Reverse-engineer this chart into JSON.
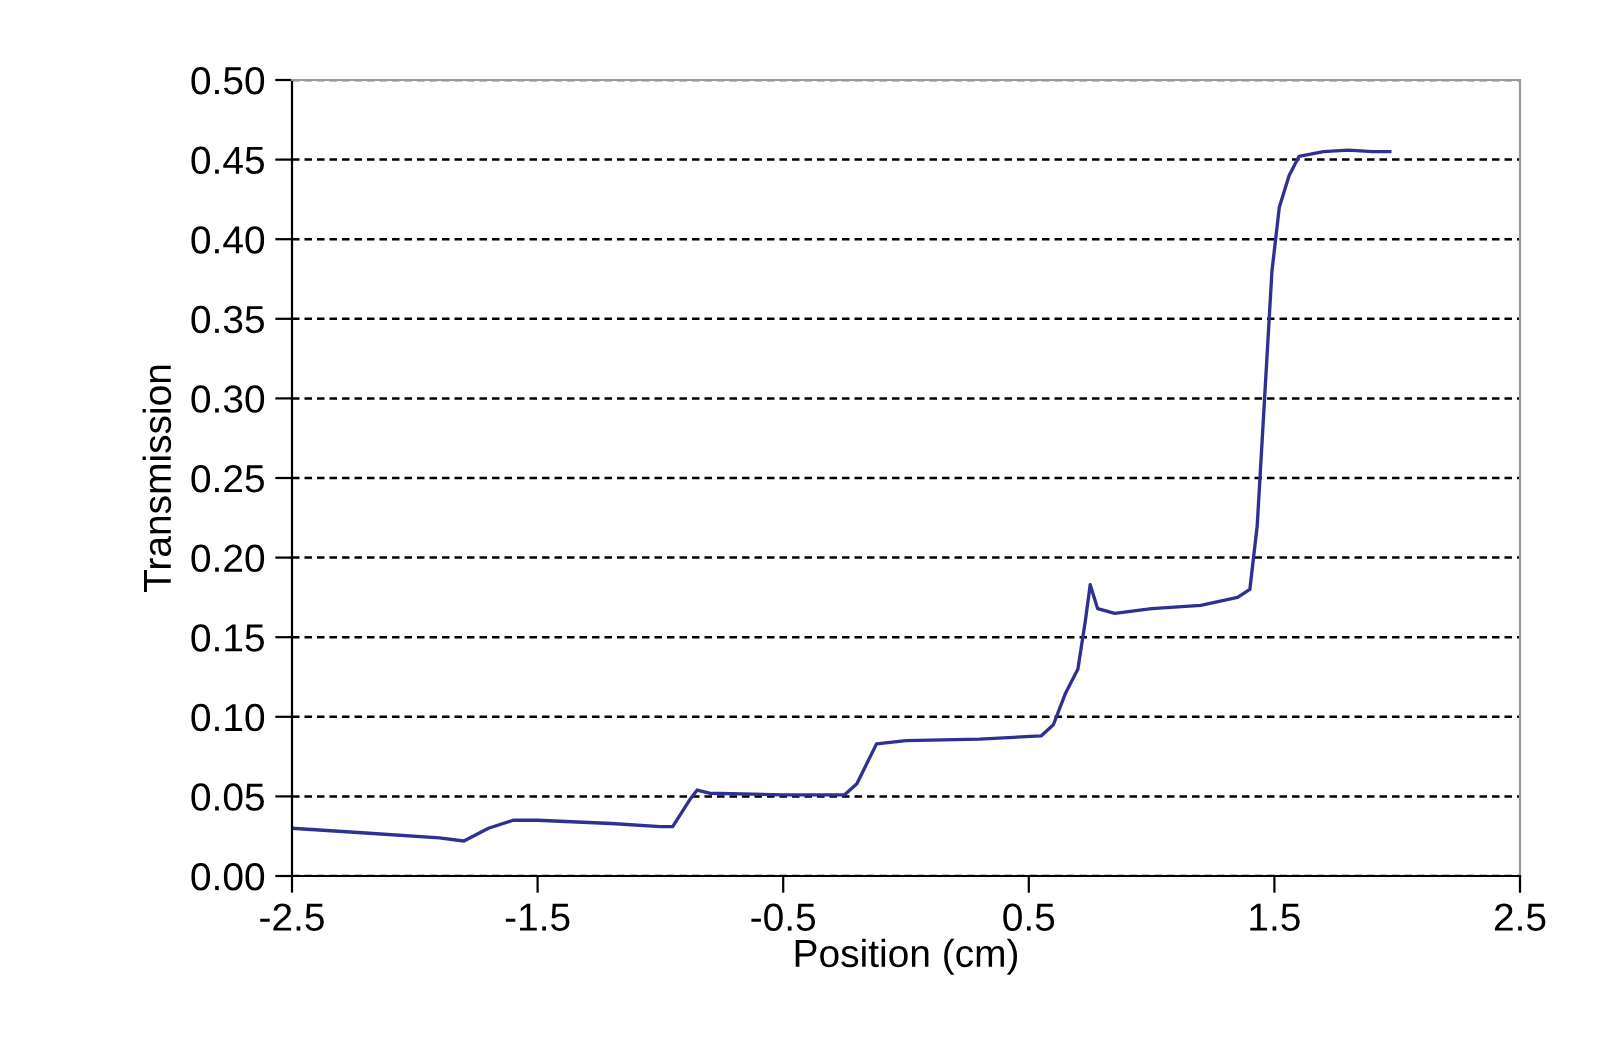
{
  "chart_data": {
    "type": "line",
    "xlabel": "Position (cm)",
    "ylabel": "Transmission",
    "x": [
      -2.5,
      -2.2,
      -1.9,
      -1.8,
      -1.7,
      -1.6,
      -1.5,
      -1.2,
      -1.0,
      -0.95,
      -0.88,
      -0.85,
      -0.8,
      -0.5,
      -0.25,
      -0.2,
      -0.12,
      0.0,
      0.3,
      0.55,
      0.6,
      0.65,
      0.7,
      0.73,
      0.75,
      0.78,
      0.85,
      1.0,
      1.2,
      1.35,
      1.4,
      1.43,
      1.46,
      1.49,
      1.52,
      1.56,
      1.6,
      1.7,
      1.8,
      1.9,
      1.97
    ],
    "series": [
      {
        "color": "#2e3192",
        "values": [
          0.03,
          0.027,
          0.024,
          0.022,
          0.03,
          0.035,
          0.035,
          0.033,
          0.031,
          0.031,
          0.048,
          0.054,
          0.052,
          0.051,
          0.051,
          0.058,
          0.083,
          0.085,
          0.086,
          0.088,
          0.095,
          0.115,
          0.13,
          0.16,
          0.183,
          0.168,
          0.165,
          0.168,
          0.17,
          0.175,
          0.18,
          0.22,
          0.3,
          0.38,
          0.42,
          0.44,
          0.452,
          0.455,
          0.456,
          0.455,
          0.455
        ]
      }
    ],
    "xlim": [
      -2.5,
      2.5
    ],
    "xticks": [
      -2.5,
      -1.5,
      -0.5,
      0.5,
      1.5,
      2.5
    ],
    "ylim": [
      0,
      0.5
    ],
    "yticks": [
      {
        "value": 0,
        "label": "0.00"
      },
      {
        "value": 0.05,
        "label": "0.05"
      },
      {
        "value": 0.1,
        "label": "0.10"
      },
      {
        "value": 0.15,
        "label": "0.15"
      },
      {
        "value": 0.2,
        "label": "0.20"
      },
      {
        "value": 0.25,
        "label": "0.25"
      },
      {
        "value": 0.3,
        "label": "0.30"
      },
      {
        "value": 0.35,
        "label": "0.35"
      },
      {
        "value": 0.4,
        "label": "0.40"
      },
      {
        "value": 0.45,
        "label": "0.45"
      },
      {
        "value": 0.5,
        "label": "0.50"
      }
    ],
    "grid": "y",
    "marker": "none",
    "line_style": "solid"
  }
}
